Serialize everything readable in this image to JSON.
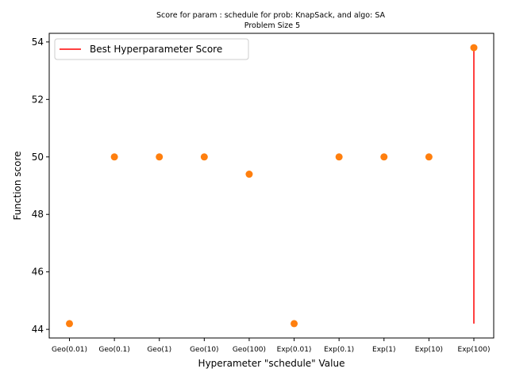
{
  "chart_data": {
    "type": "scatter",
    "title_line1": "Score for param : schedule for prob: KnapSack, and algo: SA",
    "title_line2": "Problem Size 5",
    "xlabel": "Hyperameter \"schedule\" Value",
    "ylabel": "Function score",
    "categories": [
      "Geo(0.01)",
      "Geo(0.1)",
      "Geo(1)",
      "Geo(10)",
      "Geo(100)",
      "Exp(0.01)",
      "Exp(0.1)",
      "Exp(1)",
      "Exp(10)",
      "Exp(100)"
    ],
    "series": [
      {
        "values": [
          44.2,
          50.0,
          50.0,
          50.0,
          49.4,
          44.2,
          50.0,
          50.0,
          50.0,
          53.8
        ],
        "color": "#ff7f0e"
      }
    ],
    "best_line": {
      "name": "Best Hyperparameter Score",
      "category": "Exp(100)",
      "ymin": 44.2,
      "ymax": 53.8,
      "color": "#ff0000"
    },
    "ylim": [
      43.7,
      54.3
    ],
    "yticks": [
      44,
      46,
      48,
      50,
      52,
      54
    ],
    "legend_position": "top-left",
    "grid": false
  }
}
